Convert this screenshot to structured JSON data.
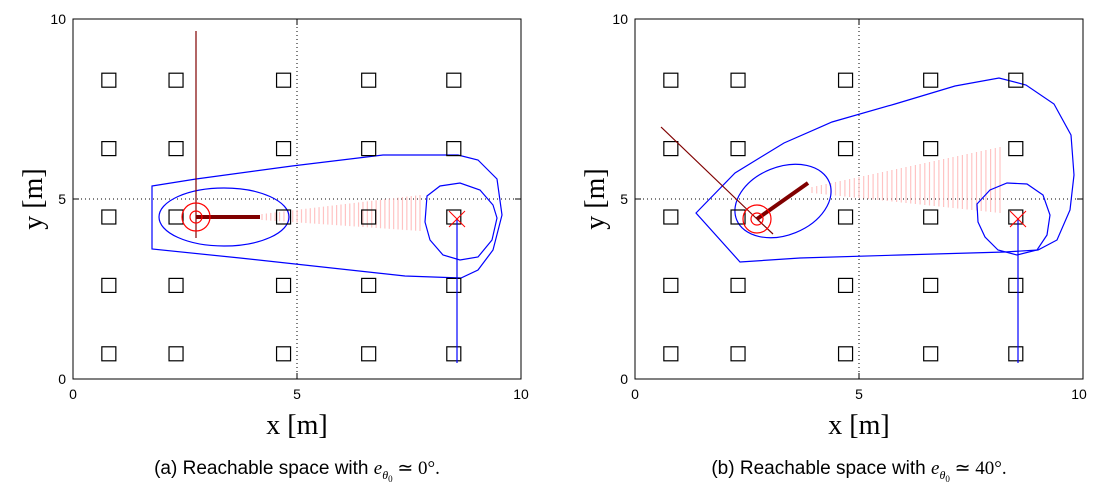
{
  "chart_data": [
    {
      "type": "scatter",
      "xlabel": "x [m]",
      "ylabel": "y [m]",
      "xlim": [
        0,
        10
      ],
      "ylim": [
        0,
        10
      ],
      "xticks": [
        "0",
        "5",
        "10"
      ],
      "yticks": [
        "0",
        "5",
        "10"
      ],
      "grid": "dotted",
      "caption": {
        "prefix": "(a) Reachable space with ",
        "symbol": "e",
        "sub": "θ",
        "subsub": "0",
        "relation": " ≃ 0°."
      },
      "landmarks": {
        "x": [
          0.8,
          2.3,
          4.7,
          6.6,
          8.5
        ],
        "y": [
          0.7,
          2.6,
          4.5,
          6.4,
          8.3
        ]
      },
      "robot_start": {
        "x": 2.75,
        "y": 4.4,
        "heading_deg": 0
      },
      "goal": {
        "x": 8.5,
        "y": 4.4
      },
      "colors": {
        "boundary": "#0000ff",
        "start": "#ff0000",
        "heading": "#800000",
        "fan": "#ffb0b0"
      }
    },
    {
      "type": "scatter",
      "xlabel": "x [m]",
      "ylabel": "y [m]",
      "xlim": [
        0,
        10
      ],
      "ylim": [
        0,
        10
      ],
      "xticks": [
        "0",
        "5",
        "10"
      ],
      "yticks": [
        "0",
        "5",
        "10"
      ],
      "grid": "dotted",
      "caption": {
        "prefix": "(b) Reachable space with ",
        "symbol": "e",
        "sub": "θ",
        "subsub": "0",
        "relation": " ≃ 40°."
      },
      "landmarks": {
        "x": [
          0.8,
          2.3,
          4.7,
          6.6,
          8.5
        ],
        "y": [
          0.7,
          2.6,
          4.5,
          6.4,
          8.3
        ]
      },
      "robot_start": {
        "x": 3.3,
        "y": 4.4,
        "heading_deg": 40
      },
      "goal": {
        "x": 8.5,
        "y": 4.4
      },
      "colors": {
        "boundary": "#0000ff",
        "start": "#ff0000",
        "heading": "#800000",
        "fan": "#ffb0b0"
      }
    }
  ]
}
